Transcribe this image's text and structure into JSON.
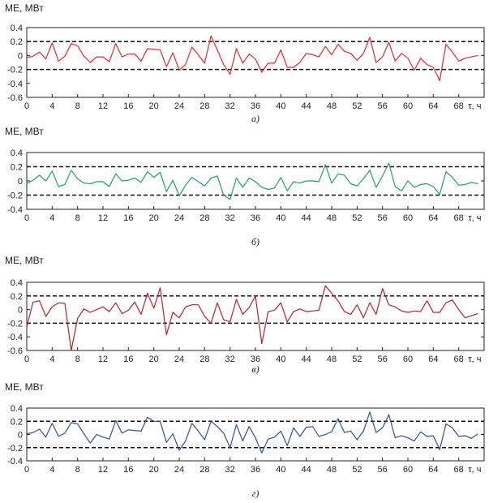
{
  "chart_data": [
    {
      "type": "line",
      "ylabel": "ME, МВт",
      "xlabel": "τ, ч",
      "caption": "а)",
      "color": "#e8282b",
      "xlim": [
        0,
        72
      ],
      "ylim": [
        -0.6,
        0.4
      ],
      "x_ticks": [
        "0",
        "4",
        "8",
        "12",
        "16",
        "20",
        "24",
        "28",
        "32",
        "36",
        "40",
        "44",
        "48",
        "52",
        "56",
        "60",
        "64",
        "68"
      ],
      "y_ticks": [
        "0.4",
        "0.2",
        "0",
        "-0.2",
        "-0.4",
        "-0.6"
      ],
      "thresholds": [
        0.2,
        -0.2
      ],
      "series": [
        {
          "x": [
            0,
            1,
            2,
            3,
            4,
            5,
            6,
            7,
            8,
            9,
            10,
            11,
            12,
            13,
            14,
            15,
            16,
            17,
            18,
            19,
            20,
            21,
            22,
            23,
            24,
            25,
            26,
            27,
            28,
            29,
            30,
            31,
            32,
            33,
            34,
            35,
            36,
            37,
            38,
            39,
            40,
            41,
            42,
            43,
            44,
            45,
            46,
            47,
            48,
            49,
            50,
            51,
            52,
            53,
            54,
            55,
            56,
            57,
            58,
            59,
            60,
            61,
            62,
            63,
            64,
            65,
            66,
            67,
            68,
            69,
            70,
            71
          ],
          "y": [
            -0.03,
            -0.01,
            0.05,
            -0.05,
            0.18,
            -0.08,
            -0.01,
            0.17,
            0.14,
            -0.01,
            -0.1,
            -0.02,
            -0.02,
            -0.09,
            0.17,
            -0.02,
            0.02,
            0.02,
            -0.08,
            0.1,
            0.09,
            0.08,
            -0.16,
            0.04,
            -0.21,
            -0.13,
            0.12,
            0.01,
            -0.11,
            0.28,
            0.08,
            -0.13,
            -0.27,
            0.1,
            -0.11,
            0.02,
            -0.05,
            -0.24,
            -0.11,
            -0.11,
            0.08,
            -0.17,
            -0.17,
            -0.1,
            0.03,
            0.01,
            -0.02,
            0.13,
            0.01,
            0.16,
            0.06,
            0.03,
            -0.07,
            0.03,
            0.26,
            -0.1,
            -0.02,
            0.19,
            -0.08,
            0.03,
            -0.04,
            -0.21,
            -0.04,
            -0.13,
            -0.17,
            -0.36,
            0.16,
            0.05,
            -0.08,
            -0.04,
            -0.02,
            0.0
          ]
        }
      ]
    },
    {
      "type": "line",
      "ylabel": "ME, МВт",
      "xlabel": "τ, ч",
      "caption": "б)",
      "color": "#21a35a",
      "xlim": [
        0,
        72
      ],
      "ylim": [
        -0.4,
        0.4
      ],
      "x_ticks": [
        "0",
        "4",
        "8",
        "12",
        "16",
        "20",
        "24",
        "28",
        "32",
        "36",
        "40",
        "44",
        "48",
        "52",
        "56",
        "60",
        "64",
        "68"
      ],
      "y_ticks": [
        "0.4",
        "0.2",
        "0",
        "-0.2",
        "-0.4"
      ],
      "thresholds": [
        0.2,
        -0.2
      ],
      "series": [
        {
          "x": [
            0,
            1,
            2,
            3,
            4,
            5,
            6,
            7,
            8,
            9,
            10,
            11,
            12,
            13,
            14,
            15,
            16,
            17,
            18,
            19,
            20,
            21,
            22,
            23,
            24,
            25,
            26,
            27,
            28,
            29,
            30,
            31,
            32,
            33,
            34,
            35,
            36,
            37,
            38,
            39,
            40,
            41,
            42,
            43,
            44,
            45,
            46,
            47,
            48,
            49,
            50,
            51,
            52,
            53,
            54,
            55,
            56,
            57,
            58,
            59,
            60,
            61,
            62,
            63,
            64,
            65,
            66,
            67,
            68,
            69,
            70,
            71
          ],
          "y": [
            -0.04,
            0.01,
            0.08,
            0.0,
            0.14,
            -0.08,
            -0.05,
            0.15,
            0.03,
            -0.03,
            -0.04,
            -0.01,
            -0.01,
            -0.08,
            0.1,
            0.0,
            0.01,
            0.04,
            -0.02,
            0.13,
            0.05,
            0.12,
            -0.15,
            0.01,
            -0.21,
            -0.06,
            0.05,
            -0.01,
            -0.07,
            0.04,
            0.07,
            -0.2,
            -0.26,
            0.04,
            -0.09,
            0.04,
            -0.01,
            -0.09,
            -0.12,
            -0.1,
            0.05,
            -0.14,
            -0.01,
            -0.03,
            0.0,
            0.0,
            -0.01,
            0.23,
            -0.03,
            0.1,
            0.08,
            -0.04,
            -0.07,
            0.03,
            0.15,
            -0.09,
            0.07,
            0.25,
            -0.08,
            -0.14,
            0.0,
            -0.09,
            -0.05,
            -0.04,
            -0.08,
            -0.19,
            0.13,
            0.05,
            -0.06,
            -0.05,
            -0.02,
            -0.04
          ]
        }
      ]
    },
    {
      "type": "line",
      "ylabel": "ME, МВт",
      "xlabel": "τ, ч",
      "caption": "в)",
      "color": "#b8202a",
      "xlim": [
        0,
        72
      ],
      "ylim": [
        -0.6,
        0.4
      ],
      "x_ticks": [
        "0",
        "4",
        "8",
        "12",
        "16",
        "20",
        "24",
        "28",
        "32",
        "36",
        "40",
        "44",
        "48",
        "52",
        "56",
        "60",
        "64",
        "68"
      ],
      "y_ticks": [
        "0.4",
        "0.2",
        "0",
        "-0.2",
        "-0.4",
        "-0.6"
      ],
      "thresholds": [
        0.2,
        -0.2
      ],
      "series": [
        {
          "x": [
            0,
            1,
            2,
            3,
            4,
            5,
            6,
            7,
            8,
            9,
            10,
            11,
            12,
            13,
            14,
            15,
            16,
            17,
            18,
            19,
            20,
            21,
            22,
            23,
            24,
            25,
            26,
            27,
            28,
            29,
            30,
            31,
            32,
            33,
            34,
            35,
            36,
            37,
            38,
            39,
            40,
            41,
            42,
            43,
            44,
            45,
            46,
            47,
            48,
            49,
            50,
            51,
            52,
            53,
            54,
            55,
            56,
            57,
            58,
            59,
            60,
            61,
            62,
            63,
            64,
            65,
            66,
            67,
            68,
            69,
            70,
            71
          ],
          "y": [
            -0.25,
            0.11,
            0.13,
            -0.1,
            0.04,
            0.1,
            0.09,
            -0.6,
            -0.13,
            0.01,
            -0.04,
            0.0,
            0.04,
            -0.03,
            0.1,
            -0.06,
            -0.01,
            0.11,
            -0.07,
            0.24,
            0.02,
            0.32,
            -0.37,
            -0.04,
            -0.12,
            0.04,
            0.07,
            0.07,
            -0.1,
            -0.2,
            0.1,
            -0.15,
            -0.18,
            0.15,
            -0.07,
            0.03,
            0.2,
            -0.5,
            -0.03,
            -0.01,
            0.1,
            -0.18,
            -0.03,
            0.01,
            -0.03,
            -0.02,
            -0.01,
            0.35,
            0.24,
            0.13,
            -0.03,
            -0.07,
            0.07,
            -0.12,
            0.1,
            -0.07,
            0.31,
            0.07,
            0.04,
            -0.02,
            -0.04,
            -0.02,
            -0.03,
            0.13,
            -0.04,
            -0.04,
            0.1,
            0.14,
            0.0,
            -0.12,
            -0.09,
            -0.06
          ]
        }
      ]
    },
    {
      "type": "line",
      "ylabel": "ME, МВт",
      "xlabel": "τ, ч",
      "caption": "г)",
      "color": "#2d4f9e",
      "xlim": [
        0,
        72
      ],
      "ylim": [
        -0.4,
        0.4
      ],
      "x_ticks": [
        "0",
        "4",
        "8",
        "12",
        "16",
        "20",
        "24",
        "28",
        "32",
        "36",
        "40",
        "44",
        "48",
        "52",
        "56",
        "60",
        "64",
        "68"
      ],
      "y_ticks": [
        "0.4",
        "0.2",
        "0",
        "-0.2",
        "-0.4"
      ],
      "thresholds": [
        0.2,
        -0.2
      ],
      "series": [
        {
          "x": [
            0,
            1,
            2,
            3,
            4,
            5,
            6,
            7,
            8,
            9,
            10,
            11,
            12,
            13,
            14,
            15,
            16,
            17,
            18,
            19,
            20,
            21,
            22,
            23,
            24,
            25,
            26,
            27,
            28,
            29,
            30,
            31,
            32,
            33,
            34,
            35,
            36,
            37,
            38,
            39,
            40,
            41,
            42,
            43,
            44,
            45,
            46,
            47,
            48,
            49,
            50,
            51,
            52,
            53,
            54,
            55,
            56,
            57,
            58,
            59,
            60,
            61,
            62,
            63,
            64,
            65,
            66,
            67,
            68,
            69,
            70,
            71
          ],
          "y": [
            0.01,
            0.03,
            0.08,
            -0.04,
            0.17,
            -0.03,
            0.02,
            0.18,
            0.16,
            0.01,
            -0.13,
            0.0,
            -0.04,
            -0.07,
            0.21,
            0.02,
            0.07,
            0.06,
            0.05,
            0.26,
            0.2,
            0.2,
            -0.12,
            0.01,
            -0.24,
            -0.1,
            0.17,
            0.05,
            -0.08,
            0.2,
            0.12,
            0.02,
            -0.2,
            0.15,
            -0.1,
            0.12,
            -0.05,
            -0.28,
            -0.07,
            -0.04,
            0.05,
            -0.17,
            0.1,
            -0.03,
            0.11,
            0.12,
            -0.03,
            0.0,
            0.04,
            0.24,
            0.03,
            0.05,
            -0.08,
            0.05,
            0.34,
            0.03,
            0.1,
            0.3,
            -0.05,
            -0.02,
            -0.05,
            -0.1,
            0.04,
            -0.03,
            -0.02,
            -0.23,
            0.16,
            0.1,
            -0.03,
            -0.02,
            -0.06,
            0.01
          ]
        }
      ]
    }
  ]
}
